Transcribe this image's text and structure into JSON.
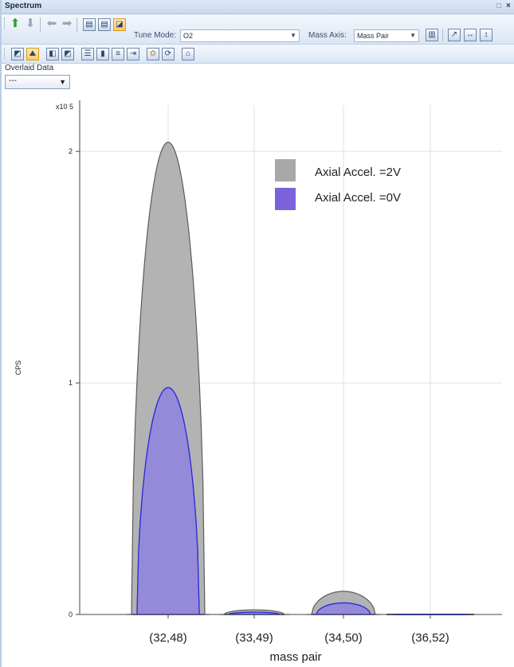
{
  "window": {
    "title": "Spectrum",
    "pin_icon": "pin-icon",
    "close_icon": "close-icon"
  },
  "toolbar": {
    "tune_mode_label": "Tune Mode:",
    "tune_mode_value": "O2",
    "mass_axis_label": "Mass Axis:",
    "mass_axis_value": "Mass Pair",
    "icons_row1": [
      "arrow-up-icon",
      "arrow-down-icon",
      "arrow-left-icon",
      "arrow-right-icon",
      "save-icon",
      "save-as-icon",
      "image-icon",
      "grid-icon",
      "zoom-x-icon",
      "zoom-y-icon"
    ],
    "icons_row2": [
      "chart-edit-icon",
      "spectrum-icon",
      "overlay-icon",
      "compare-icon",
      "table-icon",
      "bar-icon",
      "stack-icon",
      "export-icon",
      "settings-icon",
      "refresh-icon",
      "mask-icon"
    ]
  },
  "overlaid": {
    "label": "Overlaid Data",
    "value": "---"
  },
  "colors": {
    "series_2v_fill": "#b3b3b3",
    "series_2v_line": "#5c5c5c",
    "series_0v_fill": "#8f83e0",
    "series_0v_line": "#2d2ed6",
    "legend_2v": "#a8a8a8",
    "legend_0v": "#7b62dc"
  },
  "chart_data": {
    "type": "area",
    "ylabel": "CPS",
    "xlabel": "mass pair",
    "exponent_label": "x10 5",
    "categories": [
      "(32,48)",
      "(33,49)",
      "(34,50)",
      "(36,52)"
    ],
    "yticks": [
      {
        "value": 0,
        "label": "0"
      },
      {
        "value": 1,
        "label": "1"
      },
      {
        "value": 2,
        "label": "2"
      }
    ],
    "ylim": [
      0,
      2.2
    ],
    "grid": true,
    "legend_position": "top-right",
    "series": [
      {
        "name": "Axial Accel. =2V",
        "values": [
          2.04,
          0.02,
          0.1,
          0.0
        ]
      },
      {
        "name": "Axial Accel. =0V",
        "values": [
          0.98,
          0.01,
          0.05,
          0.0
        ]
      }
    ]
  }
}
